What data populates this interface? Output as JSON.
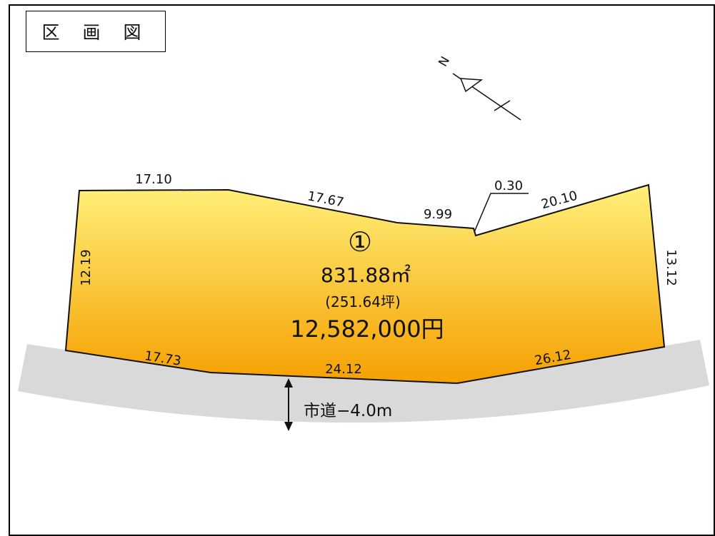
{
  "title": "区 画 図",
  "compass": {
    "north_label": "N"
  },
  "lot": {
    "number": "①",
    "area": "831.88㎡",
    "tsubo": "(251.64坪)",
    "price": "12,582,000円"
  },
  "dimensions": {
    "top_left": "17.10",
    "top_middle": "17.67",
    "top_right_inner": "9.99",
    "notch": "0.30",
    "top_right": "20.10",
    "left": "12.19",
    "right": "13.12",
    "bottom_left": "17.73",
    "bottom_middle": "24.12",
    "bottom_right": "26.12"
  },
  "road": {
    "label": "市道−4.0m"
  },
  "colors": {
    "lot_top": "#fff07a",
    "lot_bottom": "#f5a000",
    "road": "#d9d9d9"
  }
}
